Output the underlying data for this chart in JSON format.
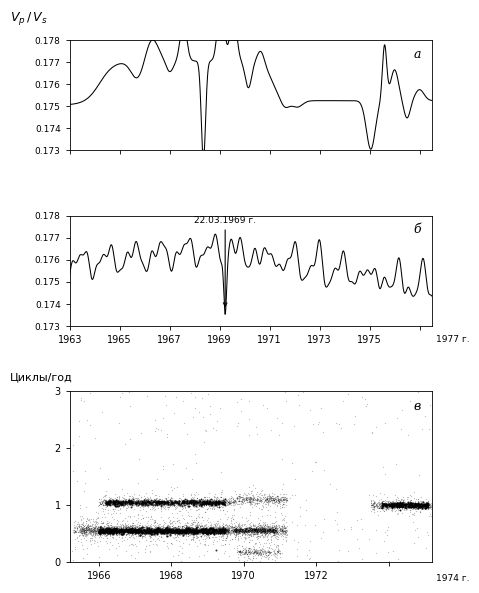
{
  "panel_a_label": "а",
  "panel_b_label": "б",
  "panel_c_label": "в",
  "ylim_ab": [
    0.173,
    0.178
  ],
  "yticks_ab": [
    0.173,
    0.174,
    0.175,
    0.176,
    0.177,
    0.178
  ],
  "xlim_ab": [
    1963,
    1977.5
  ],
  "xticks_ab": [
    1963,
    1965,
    1967,
    1969,
    1971,
    1973,
    1975,
    1977
  ],
  "annotation_text": "22.03.1969 г.",
  "xlim_c": [
    1965.2,
    1975.2
  ],
  "xticks_c": [
    1966,
    1968,
    1970,
    1972,
    1974
  ],
  "ylim_c": [
    0,
    3
  ],
  "yticks_c": [
    0,
    1,
    2,
    3
  ],
  "ylabel_c": "Циклы/год",
  "background_color": "#ffffff",
  "line_color": "#000000"
}
